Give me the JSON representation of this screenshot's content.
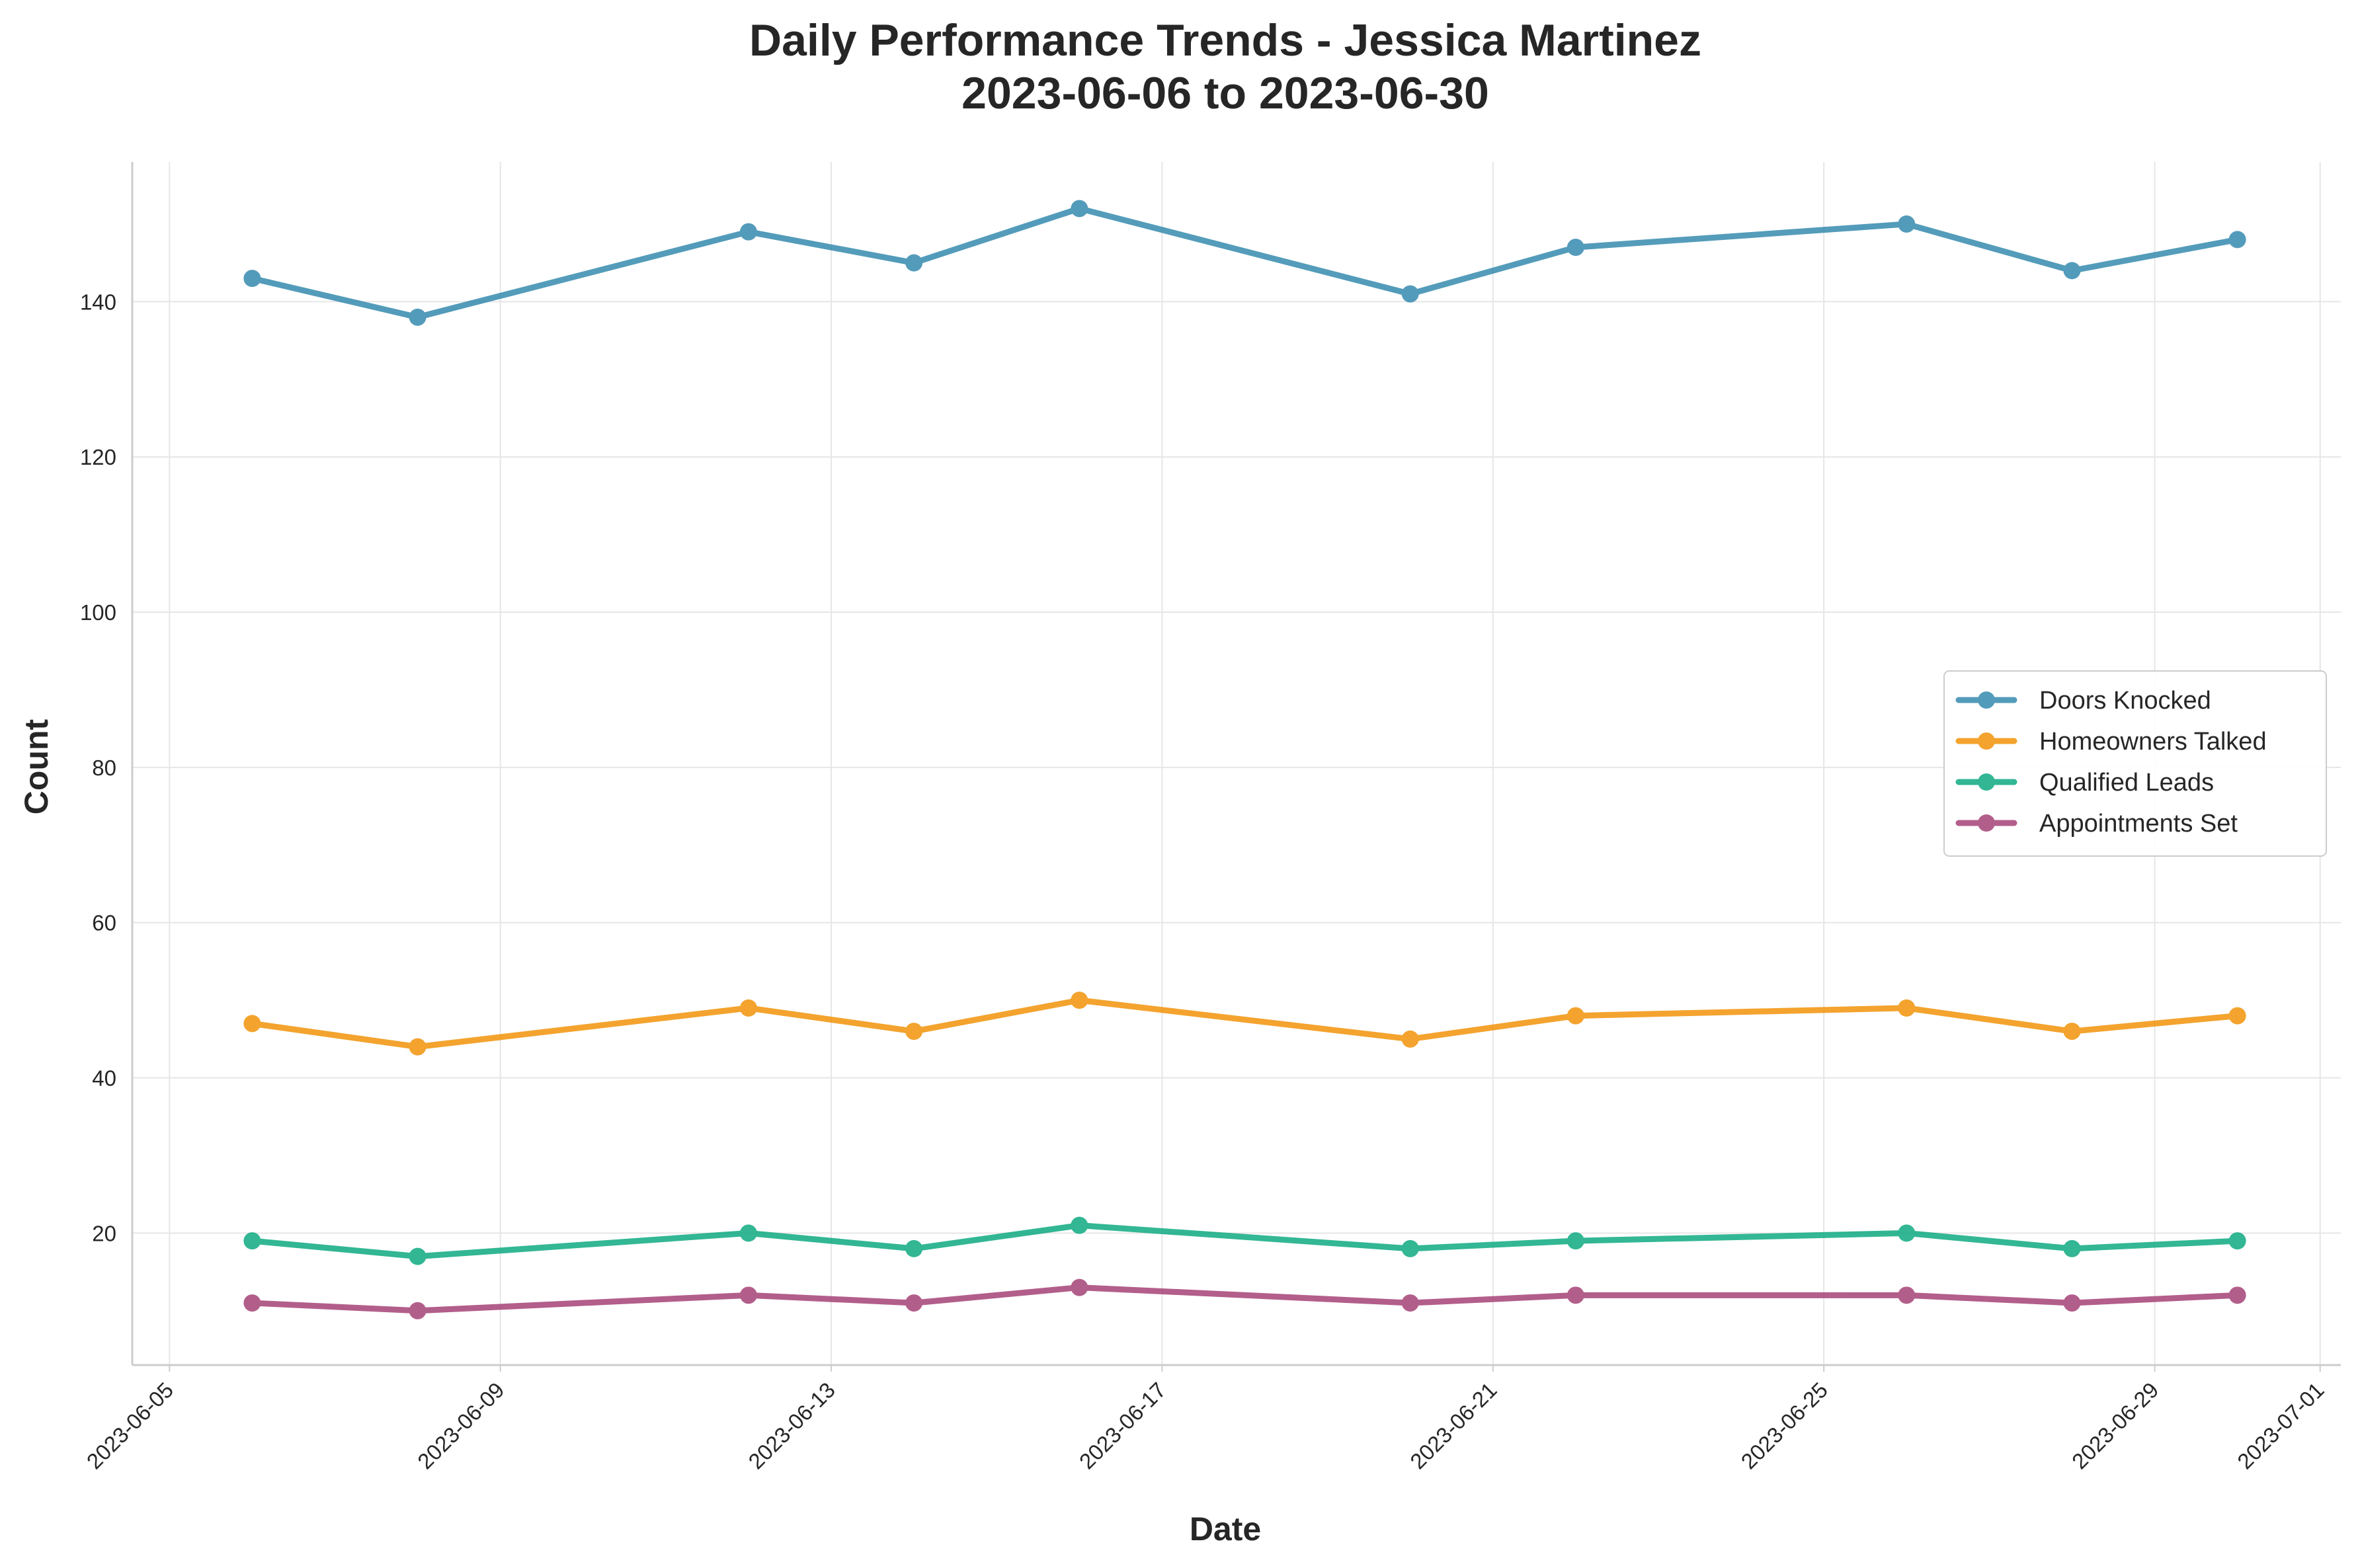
{
  "chart_data": {
    "type": "line",
    "title_line1": "Daily Performance Trends - Jessica Martinez",
    "title_line2": "2023-06-06 to 2023-06-30",
    "xlabel": "Date",
    "ylabel": "Count",
    "x": [
      "2023-06-06",
      "2023-06-08",
      "2023-06-12",
      "2023-06-14",
      "2023-06-16",
      "2023-06-20",
      "2023-06-22",
      "2023-06-26",
      "2023-06-28",
      "2023-06-30"
    ],
    "xlim": [
      "2023-06-05",
      "2023-07-01"
    ],
    "ylim": [
      3,
      158
    ],
    "xticks": [
      "2023-06-05",
      "2023-06-09",
      "2023-06-13",
      "2023-06-17",
      "2023-06-21",
      "2023-06-25",
      "2023-06-29",
      "2023-07-01"
    ],
    "yticks": [
      20,
      40,
      60,
      80,
      100,
      120,
      140
    ],
    "grid": true,
    "legend_position": "center-right",
    "series": [
      {
        "name": "Doors Knocked",
        "color": "#2e86ab",
        "values": [
          143,
          138,
          149,
          145,
          152,
          141,
          147,
          150,
          144,
          148
        ]
      },
      {
        "name": "Homeowners Talked",
        "color": "#f18f01",
        "values": [
          47,
          44,
          49,
          46,
          50,
          45,
          48,
          49,
          46,
          48
        ]
      },
      {
        "name": "Qualified Leads",
        "color": "#06a77d",
        "values": [
          19,
          17,
          20,
          18,
          21,
          18,
          19,
          20,
          18,
          19
        ]
      },
      {
        "name": "Appointments Set",
        "color": "#a23b72",
        "values": [
          11,
          10,
          12,
          11,
          13,
          11,
          12,
          12,
          11,
          12
        ]
      }
    ]
  }
}
